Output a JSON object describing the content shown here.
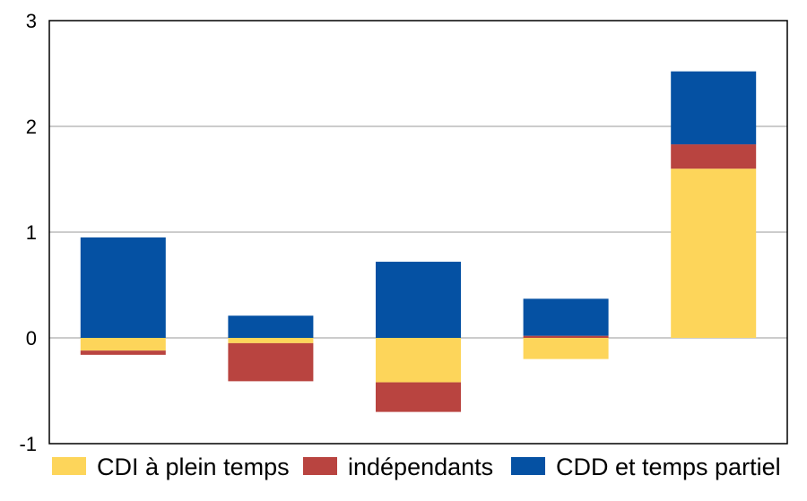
{
  "chart_data": {
    "type": "bar",
    "stacked": true,
    "title": "",
    "xlabel": "",
    "ylabel": "",
    "ylim": [
      -1,
      3
    ],
    "yticks": [
      -1,
      0,
      1,
      2,
      3
    ],
    "grid": true,
    "legend_position": "bottom",
    "categories": [
      "",
      "",
      "",
      "",
      ""
    ],
    "series": [
      {
        "name": "CDI à plein temps",
        "color": "#FDD55A",
        "values": [
          -0.12,
          -0.05,
          -0.42,
          -0.2,
          1.6
        ]
      },
      {
        "name": "indépendants",
        "color": "#B94440",
        "values": [
          -0.04,
          -0.36,
          -0.28,
          0.02,
          0.23
        ]
      },
      {
        "name": "CDD et temps partiel",
        "color": "#0551A3",
        "values": [
          0.95,
          0.21,
          0.72,
          0.35,
          0.69
        ]
      }
    ]
  }
}
